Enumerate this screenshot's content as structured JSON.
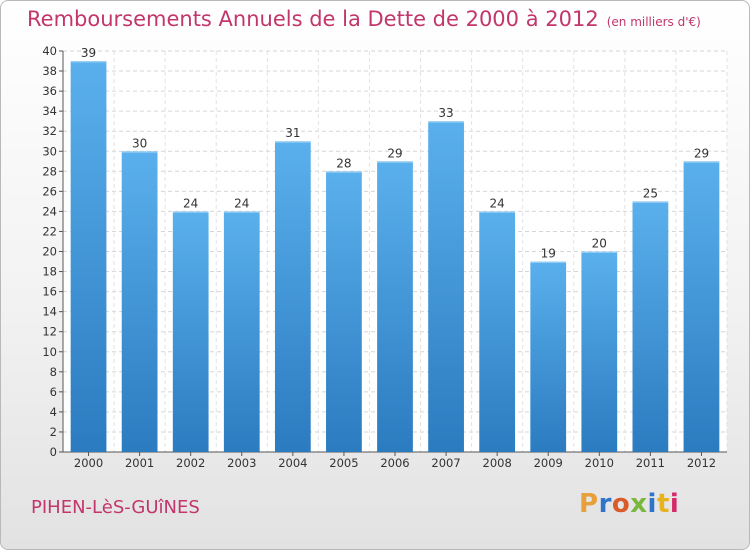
{
  "header": {
    "title": "Remboursements Annuels de la Dette de 2000 à 2012",
    "subtitle": "(en milliers d'€)"
  },
  "footer": {
    "commune": "PIHEN-LèS-GUîNES",
    "brand": "Proxiti",
    "brand_colors": [
      "#e8a13a",
      "#2e74c9",
      "#d95b2a",
      "#7ab83c",
      "#2e74c9",
      "#e6b21e",
      "#d42a6a"
    ]
  },
  "colors": {
    "bar": "#4aa3e6",
    "bar_dark": "#2d7fc4",
    "accent": "#c2366b"
  },
  "chart_data": {
    "type": "bar",
    "categories": [
      "2000",
      "2001",
      "2002",
      "2003",
      "2004",
      "2005",
      "2006",
      "2007",
      "2008",
      "2009",
      "2010",
      "2011",
      "2012"
    ],
    "values": [
      39,
      30,
      24,
      24,
      31,
      28,
      29,
      33,
      24,
      19,
      20,
      25,
      29
    ],
    "title": "Remboursements Annuels de la Dette de 2000 à 2012",
    "subtitle": "(en milliers d'€)",
    "ylim": [
      0,
      40
    ],
    "ytick_step": 2,
    "grid": true,
    "legend": "none"
  }
}
